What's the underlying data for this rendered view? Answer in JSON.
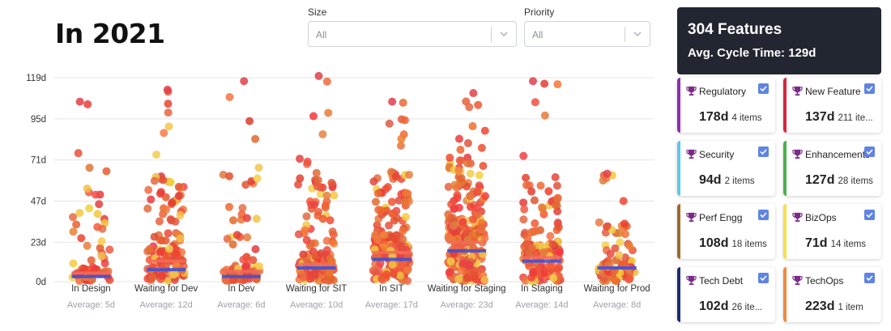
{
  "header": {
    "title": "In 2021"
  },
  "filters": [
    {
      "label": "Size",
      "value": "All"
    },
    {
      "label": "Priority",
      "value": "All"
    }
  ],
  "summary": {
    "features": "304 Features",
    "avg_cycle": "Avg. Cycle Time: 129d"
  },
  "cards": [
    {
      "name": "Regulatory",
      "value": "178d",
      "items": "4 items",
      "color": "#8f2cb5",
      "checked": true
    },
    {
      "name": "New Feature",
      "value": "137d",
      "items": "211 ite...",
      "color": "#d7263d",
      "checked": true
    },
    {
      "name": "Security",
      "value": "94d",
      "items": "2 items",
      "color": "#5ec8ea",
      "checked": true
    },
    {
      "name": "Enhancements",
      "value": "127d",
      "items": "28 items",
      "color": "#4caf50",
      "checked": true
    },
    {
      "name": "Perf Engg",
      "value": "108d",
      "items": "18 items",
      "color": "#9c6a2e",
      "checked": true
    },
    {
      "name": "BizOps",
      "value": "71d",
      "items": "14 items",
      "color": "#f5e04a",
      "checked": true
    },
    {
      "name": "Tech Debt",
      "value": "102d",
      "items": "26 ite...",
      "color": "#1c2a78",
      "checked": true
    },
    {
      "name": "TechOps",
      "value": "223d",
      "items": "1 item",
      "color": "#f08a3c",
      "checked": true
    }
  ],
  "chart_data": {
    "type": "scatter",
    "ylim": [
      0,
      119
    ],
    "y_ticks": [
      "0d",
      "23d",
      "47d",
      "71d",
      "95d",
      "119d"
    ],
    "y_tick_values": [
      0,
      23,
      47,
      71,
      95,
      119
    ],
    "grid": true,
    "categories": [
      "In Design",
      "Waiting for Dev",
      "In Dev",
      "Waiting for SIT",
      "In SIT",
      "Waiting for Staging",
      "In Staging",
      "Waiting for Prod"
    ],
    "averages_label": [
      "Average: 5d",
      "Average: 12d",
      "Average: 6d",
      "Average: 10d",
      "Average: 17d",
      "Average: 23d",
      "Average: 14d",
      "Average: 8d"
    ],
    "average_values": [
      5,
      12,
      6,
      10,
      17,
      23,
      14,
      8
    ],
    "median_values": [
      3,
      7,
      3,
      8,
      13,
      18,
      12,
      8
    ],
    "max_values": [
      105,
      112,
      117,
      120,
      105,
      110,
      117,
      63
    ],
    "point_counts": [
      70,
      140,
      90,
      140,
      200,
      260,
      150,
      90
    ],
    "colors": {
      "average": "#f26b5b",
      "median": "#3f51d6",
      "points_hot": "#e23b3b",
      "points_warm": "#f4a33c",
      "grid": "#e3e5ea"
    }
  }
}
